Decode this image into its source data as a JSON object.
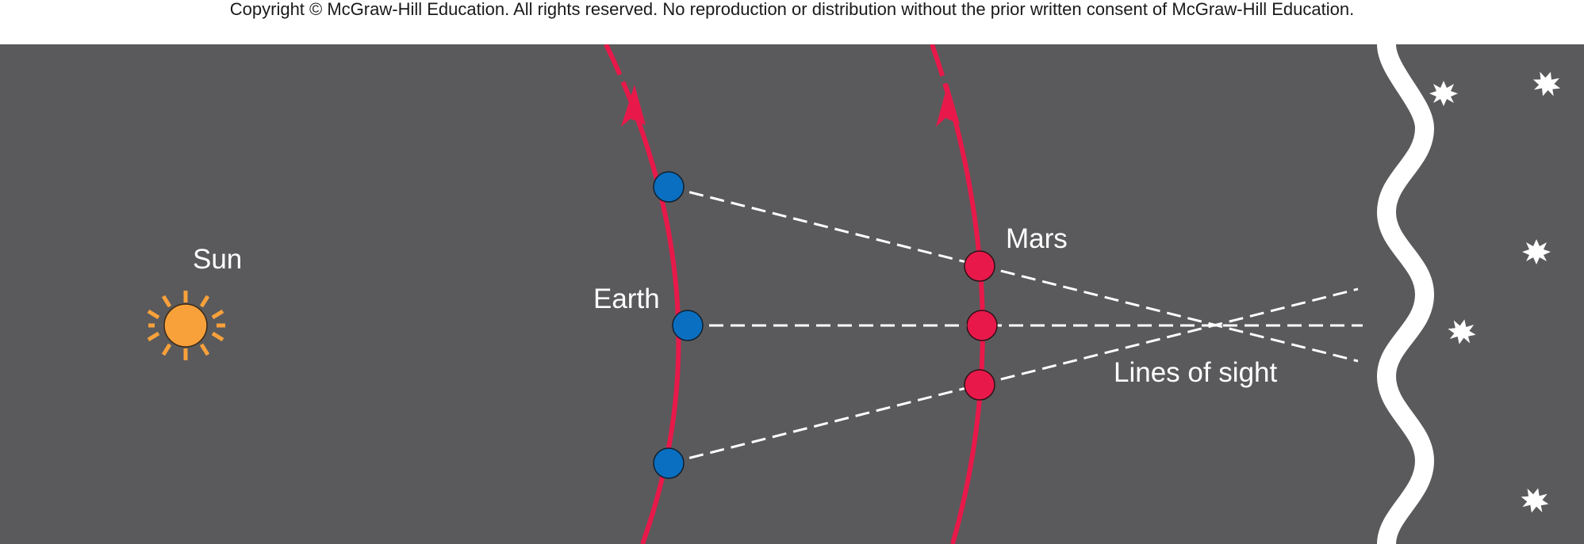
{
  "copyright": "Copyright © McGraw-Hill Education.  All rights reserved. No reproduction or distribution without the prior written consent of McGraw-Hill Education.",
  "labels": {
    "sun": "Sun",
    "earth": "Earth",
    "mars": "Mars",
    "lines_of_sight": "Lines of sight"
  },
  "colors": {
    "background": "#5a5a5c",
    "orbit": "#e8194a",
    "earth": "#0a6fc0",
    "mars": "#e8194a",
    "sun": "#f8a13a",
    "sight_lines": "#ffffff",
    "stars": "#ffffff"
  },
  "icons": {
    "sun": "sun-icon",
    "star": "star-icon"
  }
}
